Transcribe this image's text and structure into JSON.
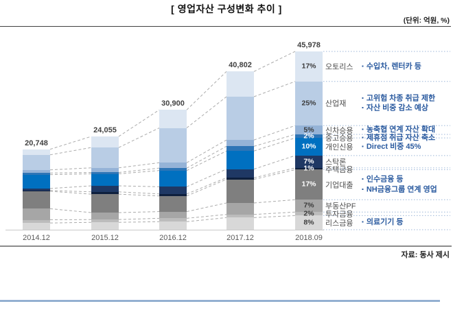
{
  "header": {
    "title": "[ 영업자산 구성변화 추이 ]",
    "unit_note": "(단위: 억원, %)"
  },
  "footer": {
    "source": "자료: 동사 제시"
  },
  "chart_data": {
    "type": "bar",
    "subtype": "stacked-composition-with-connectors",
    "title": "영업자산 구성변화 추이",
    "unit": "억원, %",
    "categories": [
      "2014.12",
      "2015.12",
      "2016.12",
      "2017.12",
      "2018.09"
    ],
    "totals": [
      20748,
      24055,
      30900,
      40802,
      45978
    ],
    "total_labels": [
      "20,748",
      "24,055",
      "30,900",
      "40,802",
      "45,978"
    ],
    "legend_position": "right-of-last-bar",
    "grid": false,
    "segments_top_to_bottom": [
      {
        "name": "오토리스",
        "color": "#dce6f2",
        "pct_2018_label": "17%",
        "shares_pct": [
          7,
          12,
          15,
          16,
          17
        ],
        "annotations": [
          "수입차, 렌터카 등"
        ]
      },
      {
        "name": "산업재",
        "color": "#b9cde5",
        "pct_2018_label": "25%",
        "shares_pct": [
          19,
          22,
          29,
          27.5,
          25
        ],
        "annotations": [
          "고위험 차종 취급 제한",
          "자산 비중 감소 예상"
        ]
      },
      {
        "name": "신차승용",
        "color": "#95b3d7",
        "pct_2018_label": "5%",
        "shares_pct": [
          4,
          5,
          4.5,
          4,
          5
        ],
        "annotations": [
          "농축협 연계 자산 확대"
        ]
      },
      {
        "name": "중고승용",
        "color": "#2e75b6",
        "pct_2018_label": "2%",
        "shares_pct": [
          2,
          1.5,
          2,
          3,
          2
        ],
        "annotations": [
          "제휴점 취급 자산 축소"
        ]
      },
      {
        "name": "개인신용",
        "color": "#0070c0",
        "pct_2018_label": "10%",
        "shares_pct": [
          17.5,
          13,
          13.5,
          11.5,
          10
        ],
        "annotations": [
          "Direct 비중 45%"
        ]
      },
      {
        "name": "스탁론",
        "color": "#1f3864",
        "pct_2018_label": "7%",
        "shares_pct": [
          2.5,
          6.5,
          6,
          5.5,
          7
        ],
        "annotations": []
      },
      {
        "name": "주택금융",
        "color": "#0e1f3d",
        "pct_2018_label": "1%",
        "shares_pct": [
          1,
          2.5,
          1.7,
          1,
          1
        ],
        "annotations": []
      },
      {
        "name": "기업대출",
        "color": "#7f7f7f",
        "pct_2018_label": "17%",
        "shares_pct": [
          22,
          20,
          13,
          15,
          17
        ],
        "annotations": [
          "인수금융 등",
          "NH금융그룹 연계 영업"
        ]
      },
      {
        "name": "부동산PF",
        "color": "#a6a6a6",
        "pct_2018_label": "7%",
        "shares_pct": [
          14,
          7.5,
          5.6,
          7.3,
          7
        ],
        "annotations": []
      },
      {
        "name": "투자금융",
        "color": "#bcbcbc",
        "pct_2018_label": "2%",
        "shares_pct": [
          4,
          3,
          2.8,
          2,
          2
        ],
        "annotations": []
      },
      {
        "name": "리스금융",
        "color": "#d8d8d8",
        "pct_2018_label": "8%",
        "shares_pct": [
          8.5,
          8,
          6.7,
          7.7,
          8
        ],
        "annotations": [
          "의료기기 등"
        ]
      }
    ],
    "style_colors": {
      "annotation_blue": "#2a5a9f",
      "connector_dash_gray": "#ababab",
      "row_dotted_blue": "#9cb6d8",
      "axis_line_gray": "#c9c9c9",
      "pct_dark_text": "#3b3b3b",
      "pct_light_text": "#ffffff"
    }
  }
}
